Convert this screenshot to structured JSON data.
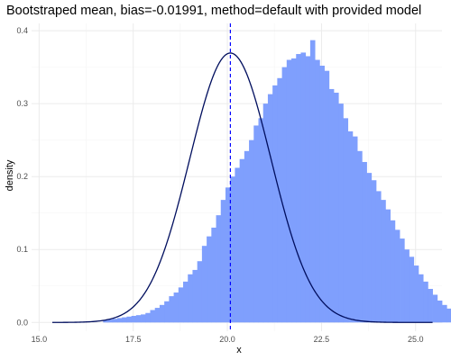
{
  "chart_data": {
    "type": "histogram",
    "title": "Bootstraped mean, bias=-0.01991, method=default with provided model",
    "xlabel": "x",
    "ylabel": "density",
    "xlim": [
      14.8,
      25.7
    ],
    "ylim": [
      -0.012,
      0.41
    ],
    "x_ticks": [
      15.0,
      17.5,
      20.0,
      22.5,
      25.0
    ],
    "x_tick_labels": [
      "15.0",
      "17.5",
      "20.0",
      "22.5",
      "25.0"
    ],
    "y_ticks": [
      0.0,
      0.1,
      0.2,
      0.3,
      0.4
    ],
    "y_tick_labels": [
      "0.0",
      "0.1",
      "0.2",
      "0.3",
      "0.4"
    ],
    "grid": true,
    "bin_start": 16.7,
    "bin_width": 0.125,
    "bin_heights": [
      0.003,
      0.004,
      0.005,
      0.006,
      0.007,
      0.008,
      0.009,
      0.01,
      0.011,
      0.013,
      0.017,
      0.02,
      0.024,
      0.029,
      0.036,
      0.041,
      0.048,
      0.056,
      0.066,
      0.072,
      0.084,
      0.105,
      0.118,
      0.13,
      0.147,
      0.168,
      0.185,
      0.2,
      0.212,
      0.224,
      0.235,
      0.25,
      0.27,
      0.28,
      0.3,
      0.313,
      0.325,
      0.335,
      0.35,
      0.36,
      0.362,
      0.368,
      0.37,
      0.365,
      0.387,
      0.36,
      0.352,
      0.345,
      0.32,
      0.315,
      0.3,
      0.28,
      0.262,
      0.255,
      0.235,
      0.22,
      0.205,
      0.195,
      0.18,
      0.168,
      0.155,
      0.14,
      0.127,
      0.115,
      0.1,
      0.09,
      0.078,
      0.066,
      0.056,
      0.046,
      0.038,
      0.03,
      0.024,
      0.019,
      0.015,
      0.011,
      0.008,
      0.006,
      0.004,
      0.003
    ],
    "density_curve": {
      "mean": 20.08,
      "sd": 1.08,
      "x_range": [
        15.35,
        25.45
      ]
    },
    "mean_line_x": 20.08
  }
}
